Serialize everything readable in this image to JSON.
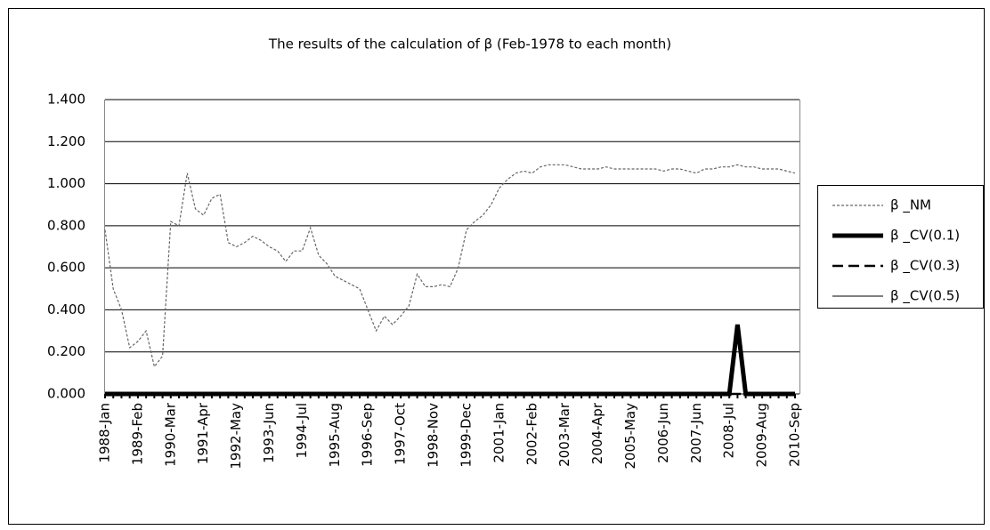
{
  "chart_data": {
    "type": "line",
    "title": "The results of the calculation of β (Feb-1978 to each month)",
    "categories": [
      "1988-Jan",
      null,
      null,
      null,
      "1989-Feb",
      null,
      null,
      null,
      "1990-Mar",
      null,
      null,
      null,
      "1991-Apr",
      null,
      null,
      null,
      "1992-May",
      null,
      null,
      null,
      "1993-Jun",
      null,
      null,
      null,
      "1994-Jul",
      null,
      null,
      null,
      "1995-Aug",
      null,
      null,
      null,
      "1996-Sep",
      null,
      null,
      null,
      "1997-Oct",
      null,
      null,
      null,
      "1998-Nov",
      null,
      null,
      null,
      "1999-Dec",
      null,
      null,
      null,
      "2001-Jan",
      null,
      null,
      null,
      "2002-Feb",
      null,
      null,
      null,
      "2003-Mar",
      null,
      null,
      null,
      "2004-Apr",
      null,
      null,
      null,
      "2005-May",
      null,
      null,
      null,
      "2006-Jun",
      null,
      null,
      null,
      "2007-Jun",
      null,
      null,
      null,
      "2008-Jul",
      null,
      null,
      null,
      "2009-Aug",
      null,
      null,
      null,
      "2010-Sep"
    ],
    "series": [
      {
        "name": "β _NM",
        "color": "#666666",
        "style": "dotted",
        "width": 1.2,
        "values": [
          0.78,
          0.5,
          0.4,
          0.22,
          0.25,
          0.3,
          0.13,
          0.18,
          0.82,
          0.8,
          1.05,
          0.88,
          0.85,
          0.93,
          0.95,
          0.72,
          0.7,
          0.72,
          0.75,
          0.73,
          0.7,
          0.68,
          0.63,
          0.68,
          0.68,
          0.79,
          0.66,
          0.62,
          0.56,
          0.54,
          0.52,
          0.5,
          0.4,
          0.3,
          0.37,
          0.33,
          0.37,
          0.42,
          0.57,
          0.51,
          0.51,
          0.52,
          0.51,
          0.6,
          0.78,
          0.82,
          0.85,
          0.9,
          0.98,
          1.02,
          1.05,
          1.06,
          1.05,
          1.08,
          1.09,
          1.09,
          1.09,
          1.08,
          1.07,
          1.07,
          1.07,
          1.08,
          1.07,
          1.07,
          1.07,
          1.07,
          1.07,
          1.07,
          1.06,
          1.07,
          1.07,
          1.06,
          1.05,
          1.07,
          1.07,
          1.08,
          1.08,
          1.09,
          1.08,
          1.08,
          1.07,
          1.07,
          1.07,
          1.06,
          1.05
        ]
      },
      {
        "name": "β _CV(0.1)",
        "color": "#000000",
        "style": "solid",
        "width": 5,
        "values": [
          0,
          0,
          0,
          0,
          0,
          0,
          0,
          0,
          0,
          0,
          0,
          0,
          0,
          0,
          0,
          0,
          0,
          0,
          0,
          0,
          0,
          0,
          0,
          0,
          0,
          0,
          0,
          0,
          0,
          0,
          0,
          0,
          0,
          0,
          0,
          0,
          0,
          0,
          0,
          0,
          0,
          0,
          0,
          0,
          0,
          0,
          0,
          0,
          0,
          0,
          0,
          0,
          0,
          0,
          0,
          0,
          0,
          0,
          0,
          0,
          0,
          0,
          0,
          0,
          0,
          0,
          0,
          0,
          0,
          0,
          0,
          0,
          0,
          0,
          0,
          0,
          0,
          0.33,
          0,
          0,
          0,
          0,
          0,
          0,
          0
        ]
      },
      {
        "name": "β _CV(0.3)",
        "color": "#000000",
        "style": "dashed",
        "width": 2.5,
        "values": [
          0,
          0,
          0,
          0,
          0,
          0,
          0,
          0,
          0,
          0,
          0,
          0,
          0,
          0,
          0,
          0,
          0,
          0,
          0,
          0,
          0,
          0,
          0,
          0,
          0,
          0,
          0,
          0,
          0,
          0,
          0,
          0,
          0,
          0,
          0,
          0,
          0,
          0,
          0,
          0,
          0,
          0,
          0,
          0,
          0,
          0,
          0,
          0,
          0,
          0,
          0,
          0,
          0,
          0,
          0,
          0,
          0,
          0,
          0,
          0,
          0,
          0,
          0,
          0,
          0,
          0,
          0,
          0,
          0,
          0,
          0,
          0,
          0,
          0,
          0,
          0,
          0,
          0,
          0,
          0,
          0,
          0,
          0,
          0,
          0
        ]
      },
      {
        "name": "β _CV(0.5)",
        "color": "#000000",
        "style": "solid",
        "width": 1,
        "values": [
          0,
          0,
          0,
          0,
          0,
          0,
          0,
          0,
          0,
          0,
          0,
          0,
          0,
          0,
          0,
          0,
          0,
          0,
          0,
          0,
          0,
          0,
          0,
          0,
          0,
          0,
          0,
          0,
          0,
          0,
          0,
          0,
          0,
          0,
          0,
          0,
          0,
          0,
          0,
          0,
          0,
          0,
          0,
          0,
          0,
          0,
          0,
          0,
          0,
          0,
          0,
          0,
          0,
          0,
          0,
          0,
          0,
          0,
          0,
          0,
          0,
          0,
          0,
          0,
          0,
          0,
          0,
          0,
          0,
          0,
          0,
          0,
          0,
          0,
          0,
          0,
          0,
          0,
          0,
          0,
          0,
          0,
          0,
          0,
          0
        ]
      }
    ],
    "ylim": [
      0,
      1.4
    ],
    "yticks": [
      {
        "value": 0,
        "label": "0.000"
      },
      {
        "value": 0.2,
        "label": "0.200"
      },
      {
        "value": 0.4,
        "label": "0.400"
      },
      {
        "value": 0.6,
        "label": "0.600"
      },
      {
        "value": 0.8,
        "label": "0.800"
      },
      {
        "value": 1,
        "label": "1.000"
      },
      {
        "value": 1.2,
        "label": "1.200"
      },
      {
        "value": 1.4,
        "label": "1.400"
      }
    ],
    "grid": true,
    "legend": "right"
  }
}
